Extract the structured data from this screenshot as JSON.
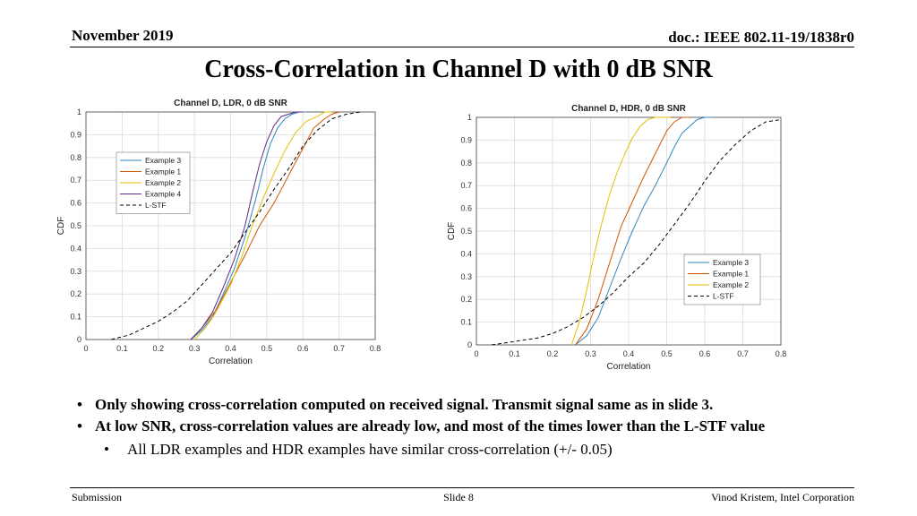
{
  "header": {
    "date": "November 2019",
    "doc": "doc.: IEEE 802.11-19/1838r0"
  },
  "title": "Cross-Correlation in Channel D with 0 dB SNR",
  "chart_data": [
    {
      "type": "line",
      "title": "Channel D, LDR, 0 dB SNR",
      "xlabel": "Correlation",
      "ylabel": "CDF",
      "xlim": [
        0,
        0.8
      ],
      "ylim": [
        0,
        1
      ],
      "grid": true,
      "legend": "top-left",
      "x_ticks": [
        "0",
        "0.1",
        "0.2",
        "0.3",
        "0.4",
        "0.5",
        "0.6",
        "0.7",
        "0.8"
      ],
      "y_ticks": [
        "0",
        "0.1",
        "0.2",
        "0.3",
        "0.4",
        "0.5",
        "0.6",
        "0.7",
        "0.8",
        "0.9",
        "1"
      ],
      "series": [
        {
          "name": "Example 3",
          "color": "#2e86c1",
          "dash": false,
          "x": [
            0.29,
            0.32,
            0.35,
            0.38,
            0.41,
            0.44,
            0.47,
            0.49,
            0.51,
            0.53,
            0.55,
            0.57,
            0.59,
            0.61
          ],
          "y": [
            0,
            0.04,
            0.1,
            0.2,
            0.31,
            0.45,
            0.62,
            0.75,
            0.86,
            0.93,
            0.97,
            0.99,
            1,
            1
          ]
        },
        {
          "name": "Example 1",
          "color": "#d35400",
          "dash": false,
          "x": [
            0.29,
            0.32,
            0.36,
            0.4,
            0.44,
            0.48,
            0.52,
            0.55,
            0.58,
            0.61,
            0.63,
            0.66,
            0.68,
            0.7
          ],
          "y": [
            0,
            0.05,
            0.13,
            0.25,
            0.37,
            0.5,
            0.6,
            0.69,
            0.78,
            0.87,
            0.93,
            0.97,
            0.99,
            1
          ]
        },
        {
          "name": "Example 2",
          "color": "#e5c100",
          "dash": false,
          "x": [
            0.3,
            0.33,
            0.36,
            0.4,
            0.43,
            0.46,
            0.49,
            0.52,
            0.55,
            0.58,
            0.61,
            0.64,
            0.66,
            0.68
          ],
          "y": [
            0,
            0.05,
            0.12,
            0.24,
            0.36,
            0.5,
            0.62,
            0.73,
            0.83,
            0.91,
            0.96,
            0.98,
            1,
            1
          ]
        },
        {
          "name": "Example 4",
          "color": "#5b2c83",
          "dash": false,
          "x": [
            0.29,
            0.32,
            0.35,
            0.38,
            0.41,
            0.44,
            0.46,
            0.48,
            0.5,
            0.52,
            0.54,
            0.56,
            0.58,
            0.6
          ],
          "y": [
            0,
            0.05,
            0.12,
            0.23,
            0.35,
            0.5,
            0.64,
            0.77,
            0.87,
            0.94,
            0.98,
            0.99,
            1,
            1
          ]
        },
        {
          "name": "L-STF",
          "color": "#000000",
          "dash": true,
          "x": [
            0.07,
            0.12,
            0.16,
            0.2,
            0.24,
            0.28,
            0.32,
            0.36,
            0.4,
            0.44,
            0.48,
            0.52,
            0.56,
            0.6,
            0.64,
            0.68,
            0.72,
            0.76
          ],
          "y": [
            0,
            0.02,
            0.05,
            0.08,
            0.12,
            0.17,
            0.24,
            0.31,
            0.38,
            0.47,
            0.56,
            0.66,
            0.75,
            0.85,
            0.92,
            0.97,
            0.99,
            1
          ]
        }
      ]
    },
    {
      "type": "line",
      "title": "Channel D, HDR, 0 dB SNR",
      "xlabel": "Correlation",
      "ylabel": "CDF",
      "xlim": [
        0,
        0.8
      ],
      "ylim": [
        0,
        1
      ],
      "grid": true,
      "legend": "bottom-right",
      "x_ticks": [
        "0",
        "0.1",
        "0.2",
        "0.3",
        "0.4",
        "0.5",
        "0.6",
        "0.7",
        "0.8"
      ],
      "y_ticks": [
        "0",
        "0.1",
        "0.2",
        "0.3",
        "0.4",
        "0.5",
        "0.6",
        "0.7",
        "0.8",
        "0.9",
        "1"
      ],
      "series": [
        {
          "name": "Example 3",
          "color": "#2e86c1",
          "dash": false,
          "x": [
            0.26,
            0.29,
            0.32,
            0.35,
            0.38,
            0.41,
            0.44,
            0.47,
            0.5,
            0.52,
            0.54,
            0.56,
            0.58,
            0.6,
            0.62
          ],
          "y": [
            0,
            0.04,
            0.12,
            0.25,
            0.38,
            0.5,
            0.61,
            0.7,
            0.8,
            0.87,
            0.93,
            0.96,
            0.99,
            1,
            1
          ]
        },
        {
          "name": "Example 1",
          "color": "#d35400",
          "dash": false,
          "x": [
            0.26,
            0.29,
            0.32,
            0.35,
            0.38,
            0.41,
            0.44,
            0.47,
            0.5,
            0.52,
            0.54,
            0.56
          ],
          "y": [
            0,
            0.07,
            0.2,
            0.36,
            0.52,
            0.63,
            0.74,
            0.84,
            0.94,
            0.98,
            1,
            1
          ]
        },
        {
          "name": "Example 2",
          "color": "#e5c100",
          "dash": false,
          "x": [
            0.25,
            0.27,
            0.29,
            0.31,
            0.33,
            0.35,
            0.37,
            0.39,
            0.41,
            0.43,
            0.45,
            0.47,
            0.49,
            0.51
          ],
          "y": [
            0,
            0.1,
            0.24,
            0.4,
            0.54,
            0.66,
            0.76,
            0.84,
            0.91,
            0.96,
            0.99,
            1,
            1,
            1
          ]
        },
        {
          "name": "L-STF",
          "color": "#000000",
          "dash": true,
          "x": [
            0.04,
            0.08,
            0.12,
            0.16,
            0.2,
            0.24,
            0.28,
            0.32,
            0.36,
            0.4,
            0.44,
            0.48,
            0.52,
            0.56,
            0.6,
            0.64,
            0.68,
            0.72,
            0.76,
            0.8
          ],
          "y": [
            0,
            0.01,
            0.02,
            0.03,
            0.05,
            0.08,
            0.12,
            0.17,
            0.23,
            0.3,
            0.36,
            0.44,
            0.53,
            0.62,
            0.72,
            0.81,
            0.88,
            0.94,
            0.98,
            0.99
          ]
        }
      ]
    }
  ],
  "bullets": [
    "Only showing cross-correlation computed on received signal. Transmit signal same as in slide 3.",
    "At low SNR, cross-correlation values are already low, and most of the times lower than the L-STF value"
  ],
  "sub_bullets": [
    "All LDR examples and HDR examples have similar cross-correlation (+/- 0.05)"
  ],
  "footer": {
    "left": "Submission",
    "center": "Slide 8",
    "right": "Vinod Kristem, Intel Corporation"
  }
}
